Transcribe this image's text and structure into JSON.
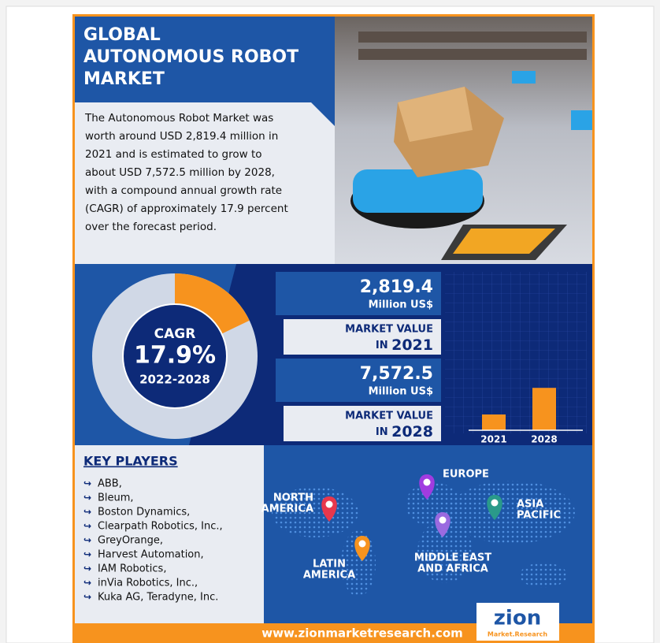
{
  "header": {
    "title_lines": [
      "GLOBAL",
      "AUTONOMOUS ROBOT",
      "MARKET"
    ]
  },
  "intro_lines": [
    "The Autonomous Robot Market was",
    "worth around USD 2,819.4 million in",
    "2021 and is estimated to grow to",
    "about USD 7,572.5 million by 2028,",
    "with a compound annual growth rate",
    "(CAGR) of approximately 17.9 percent",
    "over the forecast period."
  ],
  "cagr": {
    "label": "CAGR",
    "value": 17.9,
    "value_label": "17.9%",
    "period": "2022-2028"
  },
  "market": {
    "categories": [
      "2021",
      "2028"
    ],
    "values": [
      2819.4,
      7572.5
    ],
    "value_labels": [
      "2,819.4",
      "7,572.5"
    ],
    "unit": "Million US$",
    "caption": "MARKET VALUE",
    "caption_prefix": "IN"
  },
  "key_players": {
    "title": "KEY PLAYERS",
    "items": [
      "ABB,",
      "Bleum,",
      "Boston Dynamics,",
      "Clearpath Robotics, Inc.,",
      "GreyOrange,",
      "Harvest Automation,",
      "IAM Robotics,",
      "inVia Robotics, Inc.,",
      "Kuka AG, Teradyne, Inc."
    ]
  },
  "regions": [
    {
      "lines": [
        "NORTH",
        "AMERICA"
      ]
    },
    {
      "lines": [
        "EUROPE"
      ]
    },
    {
      "lines": [
        "ASIA",
        "PACIFIC"
      ]
    },
    {
      "lines": [
        "MIDDLE EAST",
        "AND AFRICA"
      ]
    },
    {
      "lines": [
        "LATIN",
        "AMERICA"
      ]
    }
  ],
  "footer": {
    "website": "www.zionmarketresearch.com",
    "logo": "zion",
    "logo_sub": "Market.Research"
  }
}
